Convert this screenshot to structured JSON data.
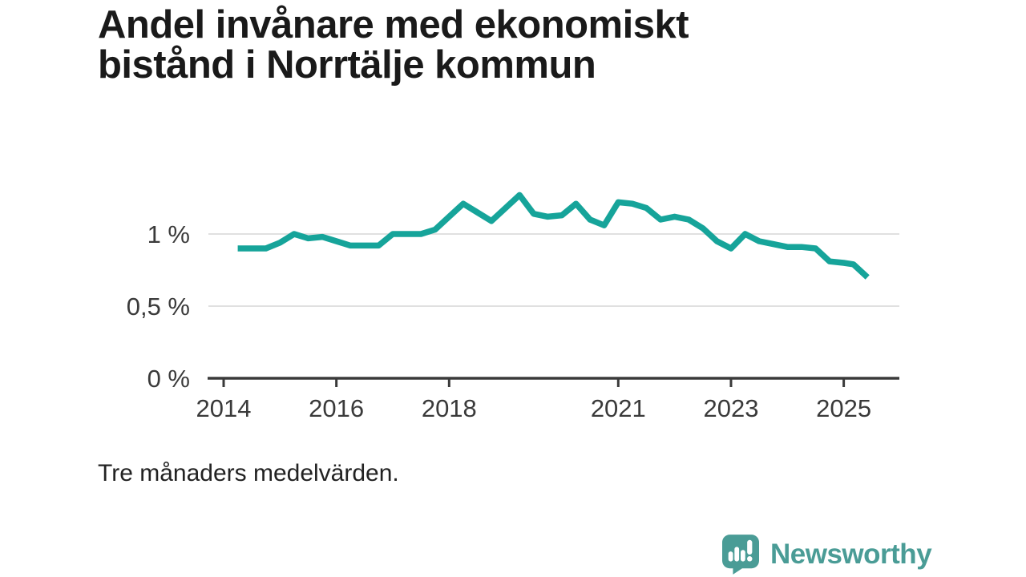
{
  "title": {
    "line1": "Andel invånare med ekonomiskt",
    "line2": "bistånd i Norrtälje kommun"
  },
  "subtitle": "Tre månaders medelvärden.",
  "branding": {
    "name": "Newsworthy",
    "icon": "newsworthy-speech-bubble-bar-chart-icon"
  },
  "colors": {
    "line": "#16a49a",
    "logo": "#4a9c96",
    "logo_glyph": "#ffffff",
    "grid": "#e0e0e0",
    "axis": "#3a3a3a",
    "tick_text": "#3a3a3a",
    "title_text": "#1a1a1a",
    "background": "#ffffff"
  },
  "chart_data": {
    "type": "line",
    "title": "Andel invånare med ekonomiskt bistånd i Norrtälje kommun",
    "note": "Tre månaders medelvärden.",
    "unit": "%",
    "xlim": [
      2013.7,
      2026.0
    ],
    "ylim": [
      0,
      1.35
    ],
    "grid": "horizontal",
    "legend": "none",
    "x_ticks": [
      {
        "label": "2014",
        "value": 2014
      },
      {
        "label": "2016",
        "value": 2016
      },
      {
        "label": "2018",
        "value": 2018
      },
      {
        "label": "2021",
        "value": 2021
      },
      {
        "label": "2023",
        "value": 2023
      },
      {
        "label": "2025",
        "value": 2025
      }
    ],
    "y_ticks": [
      {
        "label": "0 %",
        "value": 0
      },
      {
        "label": "0,5 %",
        "value": 0.5
      },
      {
        "label": "1 %",
        "value": 1
      }
    ],
    "series": [
      {
        "name": "Andel invånare med ekonomiskt bistånd",
        "points": [
          [
            2014.25,
            0.9
          ],
          [
            2014.5,
            0.9
          ],
          [
            2014.75,
            0.9
          ],
          [
            2015.0,
            0.94
          ],
          [
            2015.25,
            1.0
          ],
          [
            2015.5,
            0.97
          ],
          [
            2015.75,
            0.98
          ],
          [
            2016.0,
            0.95
          ],
          [
            2016.25,
            0.92
          ],
          [
            2016.5,
            0.92
          ],
          [
            2016.75,
            0.92
          ],
          [
            2017.0,
            1.0
          ],
          [
            2017.25,
            1.0
          ],
          [
            2017.5,
            1.0
          ],
          [
            2017.75,
            1.03
          ],
          [
            2018.0,
            1.12
          ],
          [
            2018.25,
            1.21
          ],
          [
            2018.5,
            1.15
          ],
          [
            2018.75,
            1.09
          ],
          [
            2019.0,
            1.18
          ],
          [
            2019.25,
            1.27
          ],
          [
            2019.5,
            1.14
          ],
          [
            2019.75,
            1.12
          ],
          [
            2020.0,
            1.13
          ],
          [
            2020.25,
            1.21
          ],
          [
            2020.5,
            1.1
          ],
          [
            2020.75,
            1.06
          ],
          [
            2021.0,
            1.22
          ],
          [
            2021.25,
            1.21
          ],
          [
            2021.5,
            1.18
          ],
          [
            2021.75,
            1.1
          ],
          [
            2022.0,
            1.12
          ],
          [
            2022.25,
            1.1
          ],
          [
            2022.5,
            1.04
          ],
          [
            2022.75,
            0.95
          ],
          [
            2023.0,
            0.9
          ],
          [
            2023.25,
            1.0
          ],
          [
            2023.5,
            0.95
          ],
          [
            2023.75,
            0.93
          ],
          [
            2024.0,
            0.91
          ],
          [
            2024.25,
            0.91
          ],
          [
            2024.5,
            0.9
          ],
          [
            2024.75,
            0.81
          ],
          [
            2025.0,
            0.8
          ],
          [
            2025.17,
            0.79
          ],
          [
            2025.42,
            0.7
          ]
        ]
      }
    ]
  }
}
